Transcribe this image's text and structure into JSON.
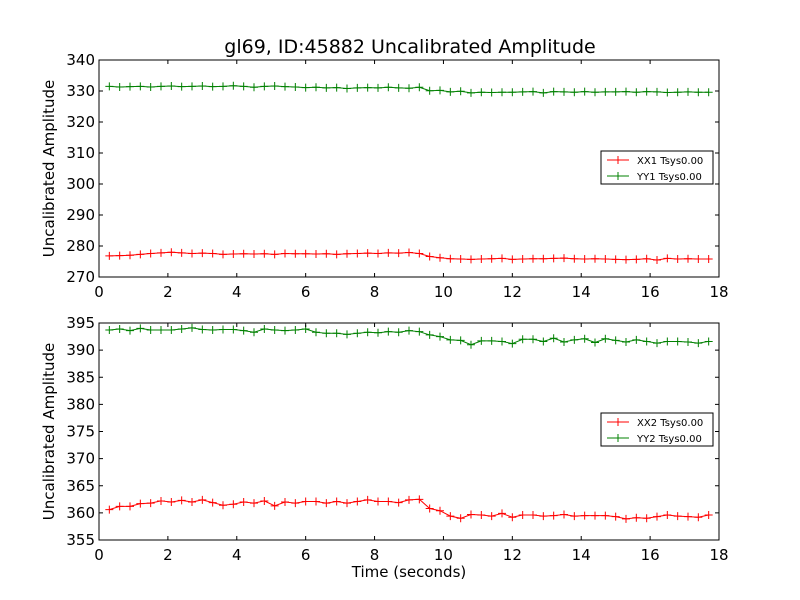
{
  "title": "gl69, ID:45882 Uncalibrated Amplitude",
  "chart_data": [
    {
      "type": "line",
      "title": "gl69, ID:45882 Uncalibrated Amplitude",
      "xlabel": "",
      "ylabel": "Uncalibrated Amplitude",
      "xlim": [
        0,
        18
      ],
      "ylim": [
        270,
        340
      ],
      "xticks": [
        0,
        2,
        4,
        6,
        8,
        10,
        12,
        14,
        16,
        18
      ],
      "yticks": [
        270,
        280,
        290,
        300,
        310,
        320,
        330,
        340
      ],
      "legend_position": "center-right",
      "x": [
        0.3,
        0.6,
        0.9,
        1.2,
        1.5,
        1.8,
        2.1,
        2.4,
        2.7,
        3.0,
        3.3,
        3.6,
        3.9,
        4.2,
        4.5,
        4.8,
        5.1,
        5.4,
        5.7,
        6.0,
        6.3,
        6.6,
        6.9,
        7.2,
        7.5,
        7.8,
        8.1,
        8.4,
        8.7,
        9.0,
        9.3,
        9.6,
        9.9,
        10.2,
        10.5,
        10.8,
        11.1,
        11.4,
        11.7,
        12.0,
        12.3,
        12.6,
        12.9,
        13.2,
        13.5,
        13.8,
        14.1,
        14.4,
        14.7,
        15.0,
        15.3,
        15.6,
        15.9,
        16.2,
        16.5,
        16.8,
        17.1,
        17.4,
        17.7
      ],
      "series": [
        {
          "name": "XX1 Tsys0.00",
          "color": "#ff0000",
          "values": [
            276.8,
            276.9,
            277.0,
            277.3,
            277.6,
            277.8,
            278.0,
            277.8,
            277.6,
            277.7,
            277.6,
            277.3,
            277.4,
            277.5,
            277.4,
            277.5,
            277.3,
            277.6,
            277.5,
            277.5,
            277.4,
            277.5,
            277.3,
            277.5,
            277.6,
            277.7,
            277.6,
            277.8,
            277.7,
            277.9,
            277.6,
            276.6,
            276.2,
            275.9,
            275.8,
            275.7,
            275.8,
            275.9,
            276.0,
            275.7,
            275.8,
            275.9,
            275.9,
            276.0,
            276.1,
            275.9,
            275.8,
            275.9,
            275.8,
            275.7,
            275.6,
            275.7,
            275.9,
            275.5,
            276.0,
            275.8,
            275.9,
            275.8,
            275.8
          ]
        },
        {
          "name": "YY1 Tsys0.00",
          "color": "#008000",
          "values": [
            331.5,
            331.3,
            331.4,
            331.5,
            331.3,
            331.5,
            331.6,
            331.4,
            331.5,
            331.6,
            331.4,
            331.5,
            331.7,
            331.5,
            331.2,
            331.5,
            331.6,
            331.4,
            331.3,
            331.1,
            331.2,
            331.0,
            331.1,
            330.8,
            331.0,
            331.1,
            331.0,
            331.2,
            331.0,
            330.9,
            331.2,
            330.1,
            330.2,
            329.7,
            329.9,
            329.4,
            329.6,
            329.5,
            329.6,
            329.6,
            329.7,
            329.8,
            329.4,
            329.8,
            329.7,
            329.6,
            329.8,
            329.6,
            329.7,
            329.7,
            329.8,
            329.6,
            329.8,
            329.7,
            329.5,
            329.6,
            329.7,
            329.6,
            329.6
          ]
        }
      ]
    },
    {
      "type": "line",
      "title": "",
      "xlabel": "Time (seconds)",
      "ylabel": "Uncalibrated Amplitude",
      "xlim": [
        0,
        18
      ],
      "ylim": [
        355,
        395
      ],
      "xticks": [
        0,
        2,
        4,
        6,
        8,
        10,
        12,
        14,
        16,
        18
      ],
      "yticks": [
        355,
        360,
        365,
        370,
        375,
        380,
        385,
        390,
        395
      ],
      "legend_position": "center-right",
      "x": [
        0.3,
        0.6,
        0.9,
        1.2,
        1.5,
        1.8,
        2.1,
        2.4,
        2.7,
        3.0,
        3.3,
        3.6,
        3.9,
        4.2,
        4.5,
        4.8,
        5.1,
        5.4,
        5.7,
        6.0,
        6.3,
        6.6,
        6.9,
        7.2,
        7.5,
        7.8,
        8.1,
        8.4,
        8.7,
        9.0,
        9.3,
        9.6,
        9.9,
        10.2,
        10.5,
        10.8,
        11.1,
        11.4,
        11.7,
        12.0,
        12.3,
        12.6,
        12.9,
        13.2,
        13.5,
        13.8,
        14.1,
        14.4,
        14.7,
        15.0,
        15.3,
        15.6,
        15.9,
        16.2,
        16.5,
        16.8,
        17.1,
        17.4,
        17.7
      ],
      "series": [
        {
          "name": "XX2 Tsys0.00",
          "color": "#ff0000",
          "values": [
            360.6,
            361.2,
            361.2,
            361.7,
            361.8,
            362.2,
            362.0,
            362.3,
            362.0,
            362.4,
            361.9,
            361.4,
            361.6,
            362.0,
            361.8,
            362.2,
            361.3,
            362.0,
            361.8,
            362.1,
            362.1,
            361.8,
            362.1,
            361.8,
            362.1,
            362.4,
            362.1,
            362.1,
            361.9,
            362.4,
            362.5,
            360.8,
            360.4,
            359.4,
            359.0,
            359.7,
            359.6,
            359.4,
            359.9,
            359.2,
            359.6,
            359.6,
            359.4,
            359.5,
            359.7,
            359.4,
            359.5,
            359.5,
            359.5,
            359.3,
            358.9,
            359.1,
            359.0,
            359.3,
            359.6,
            359.4,
            359.3,
            359.2,
            359.6
          ]
        },
        {
          "name": "YY2 Tsys0.00",
          "color": "#008000",
          "values": [
            393.7,
            393.9,
            393.6,
            394.0,
            393.7,
            393.7,
            393.7,
            393.9,
            394.1,
            393.8,
            393.7,
            393.8,
            393.8,
            393.6,
            393.3,
            393.9,
            393.7,
            393.6,
            393.7,
            393.9,
            393.3,
            393.1,
            393.1,
            392.9,
            393.1,
            393.3,
            393.2,
            393.4,
            393.3,
            393.6,
            393.4,
            392.8,
            392.5,
            391.9,
            391.8,
            391.0,
            391.7,
            391.7,
            391.6,
            391.2,
            392.0,
            392.0,
            391.6,
            392.2,
            391.5,
            391.9,
            392.1,
            391.4,
            392.1,
            391.8,
            391.5,
            391.9,
            391.6,
            391.3,
            391.6,
            391.6,
            391.5,
            391.3,
            391.6
          ]
        }
      ]
    }
  ]
}
